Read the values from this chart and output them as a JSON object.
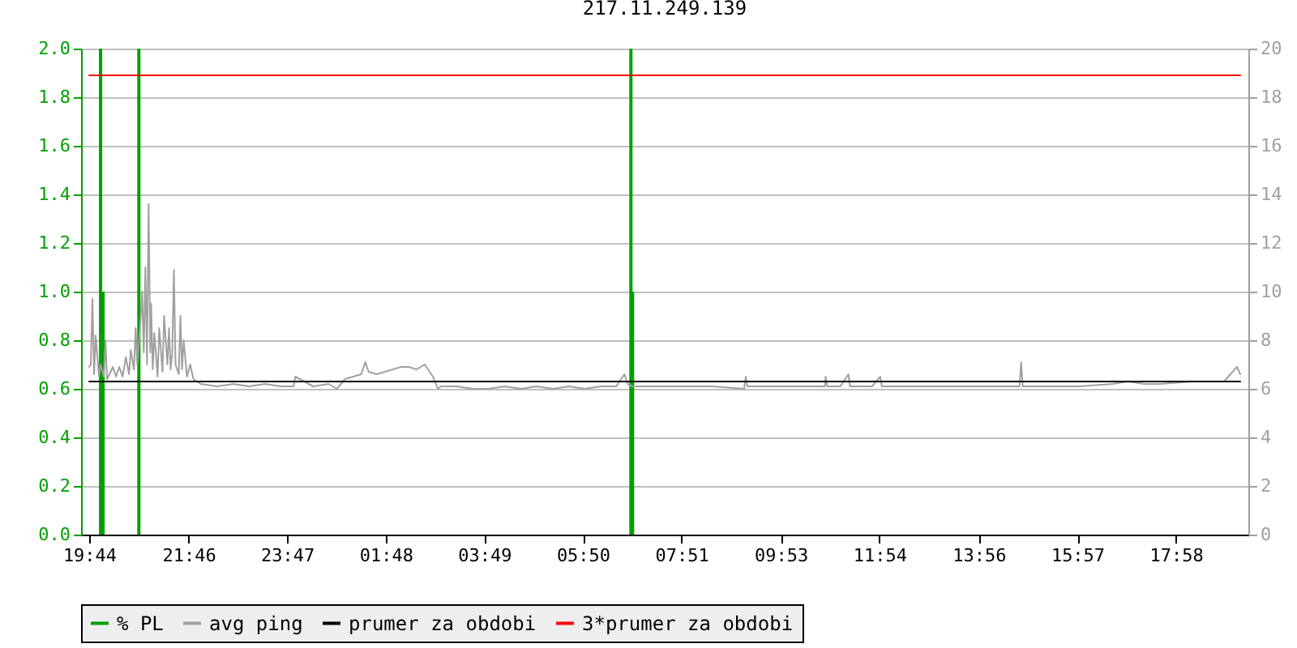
{
  "chart_data": {
    "type": "line",
    "title": "217.11.249.139",
    "grid": "y",
    "legend": "bottom",
    "xlim": [
      "--01-01T19:44",
      "--01-02T19:17"
    ],
    "xticks": [
      {
        "value": "--01-01T19:44",
        "label": "19:44"
      },
      {
        "value": "--01-01T21:46",
        "label": "21:46"
      },
      {
        "value": "--01-01T23:47",
        "label": "23:47"
      },
      {
        "value": "--01-02T01:48",
        "label": "01:48"
      },
      {
        "value": "--01-02T03:49",
        "label": "03:49"
      },
      {
        "value": "--01-02T05:50",
        "label": "05:50"
      },
      {
        "value": "--01-02T07:51",
        "label": "07:51"
      },
      {
        "value": "--01-02T09:53",
        "label": "09:53"
      },
      {
        "value": "--01-02T11:54",
        "label": "11:54"
      },
      {
        "value": "--01-02T13:56",
        "label": "13:56"
      },
      {
        "value": "--01-02T15:57",
        "label": "15:57"
      },
      {
        "value": "--01-02T17:58",
        "label": "17:58"
      }
    ],
    "ylim": [
      0,
      2
    ],
    "yticks": [
      {
        "value": 0,
        "label": "0.0"
      },
      0.2,
      0.4,
      0.6,
      0.8,
      {
        "value": 1,
        "label": "1.0"
      },
      1.2,
      1.4,
      1.6,
      1.8,
      {
        "value": 2,
        "label": "2.0"
      }
    ],
    "y2lim": [
      0,
      20
    ],
    "y2ticks": [
      0,
      2,
      4,
      6,
      8,
      10,
      12,
      14,
      16,
      18,
      20
    ],
    "series": [
      {
        "name": "% PL",
        "type": "bar",
        "axis": "y",
        "color": "#00a000",
        "x": [
          "--01-01T19:58",
          "--01-01T20:01",
          "--01-01T20:45",
          "--01-02T06:49",
          "--01-02T06:51"
        ],
        "values": [
          2.0,
          1.0,
          2.0,
          2.0,
          1.0
        ]
      },
      {
        "name": "avg ping",
        "axis": "y2",
        "color": "#a0a0a0",
        "x": [
          "--01-01T19:44",
          "--01-01T19:46",
          "--01-01T19:48",
          "--01-01T19:50",
          "--01-01T19:52",
          "--01-01T19:56",
          "--01-01T19:58",
          "--01-01T20:02",
          "--01-01T20:04",
          "--01-01T20:06",
          "--01-01T20:09",
          "--01-01T20:13",
          "--01-01T20:17",
          "--01-01T20:21",
          "--01-01T20:25",
          "--01-01T20:29",
          "--01-01T20:33",
          "--01-01T20:35",
          "--01-01T20:39",
          "--01-01T20:41",
          "--01-01T20:43",
          "--01-01T20:47",
          "--01-01T20:49",
          "--01-01T20:51",
          "--01-01T20:53",
          "--01-01T20:55",
          "--01-01T20:57",
          "--01-01T20:59",
          "--01-01T21:00",
          "--01-01T21:02",
          "--01-01T21:04",
          "--01-01T21:08",
          "--01-01T21:10",
          "--01-01T21:14",
          "--01-01T21:16",
          "--01-01T21:20",
          "--01-01T21:22",
          "--01-01T21:24",
          "--01-01T21:26",
          "--01-01T21:28",
          "--01-01T21:30",
          "--01-01T21:34",
          "--01-01T21:36",
          "--01-01T21:38",
          "--01-01T21:40",
          "--01-01T21:44",
          "--01-01T21:48",
          "--01-01T21:52",
          "--01-01T22:01",
          "--01-01T22:21",
          "--01-01T22:41",
          "--01-01T23:00",
          "--01-01T23:20",
          "--01-01T23:39",
          "--01-01T23:55",
          "--01-01T23:57",
          "--01-02T00:19",
          "--01-02T00:38",
          "--01-02T00:48",
          "--01-02T00:58",
          "--01-02T01:18",
          "--01-02T01:23",
          "--01-02T01:27",
          "--01-02T01:37",
          "--01-02T01:57",
          "--01-02T02:07",
          "--01-02T02:16",
          "--01-02T02:26",
          "--01-02T02:36",
          "--01-02T02:46",
          "--01-02T02:52",
          "--01-02T02:56",
          "--01-02T03:15",
          "--01-02T03:35",
          "--01-02T03:54",
          "--01-02T04:14",
          "--01-02T04:34",
          "--01-02T04:53",
          "--01-02T05:13",
          "--01-02T05:33",
          "--01-02T05:52",
          "--01-02T06:12",
          "--01-02T06:31",
          "--01-02T06:41",
          "--01-02T06:45",
          "--01-02T06:51",
          "--01-02T07:11",
          "--01-02T07:50",
          "--01-02T08:29",
          "--01-02T09:08",
          "--01-02T09:10",
          "--01-02T09:12",
          "--01-02T09:48",
          "--01-02T10:27",
          "--01-02T10:47",
          "--01-02T10:48",
          "--01-02T10:50",
          "--01-02T11:06",
          "--01-02T11:16",
          "--01-02T11:18",
          "--01-02T11:45",
          "--01-02T11:55",
          "--01-02T11:57",
          "--01-02T12:25",
          "--01-02T13:04",
          "--01-02T13:43",
          "--01-02T14:22",
          "--01-02T14:46",
          "--01-02T14:48",
          "--01-02T14:50",
          "--01-02T15:21",
          "--01-02T16:00",
          "--01-02T16:40",
          "--01-02T16:59",
          "--01-02T17:19",
          "--01-02T17:39",
          "--01-02T18:18",
          "--01-02T18:57",
          "--01-02T19:13",
          "--01-02T19:17"
        ],
        "values": [
          6.9,
          7.0,
          9.7,
          6.6,
          8.2,
          6.5,
          7.0,
          6.5,
          8.0,
          6.4,
          6.6,
          6.9,
          6.5,
          6.9,
          6.5,
          7.3,
          6.6,
          7.6,
          6.8,
          8.5,
          7.0,
          8.8,
          10.0,
          7.5,
          11.0,
          7.0,
          13.6,
          7.5,
          9.5,
          6.8,
          8.3,
          6.5,
          8.5,
          6.7,
          9.0,
          7.0,
          8.5,
          6.8,
          7.5,
          10.9,
          7.0,
          6.6,
          9.0,
          6.8,
          8.0,
          6.5,
          7.0,
          6.4,
          6.2,
          6.1,
          6.2,
          6.1,
          6.2,
          6.1,
          6.1,
          6.5,
          6.1,
          6.2,
          6.0,
          6.4,
          6.6,
          7.1,
          6.7,
          6.6,
          6.8,
          6.9,
          6.9,
          6.8,
          7.0,
          6.5,
          6.0,
          6.1,
          6.1,
          6.0,
          6.0,
          6.1,
          6.0,
          6.1,
          6.0,
          6.1,
          6.0,
          6.1,
          6.1,
          6.6,
          6.2,
          6.1,
          6.1,
          6.1,
          6.1,
          6.0,
          6.5,
          6.1,
          6.1,
          6.1,
          6.1,
          6.5,
          6.1,
          6.1,
          6.6,
          6.1,
          6.1,
          6.5,
          6.1,
          6.1,
          6.1,
          6.1,
          6.1,
          6.1,
          7.1,
          6.1,
          6.1,
          6.1,
          6.2,
          6.3,
          6.2,
          6.2,
          6.3,
          6.3,
          6.9,
          6.6
        ]
      },
      {
        "name": "prumer za obdobi",
        "axis": "y2",
        "color": "#000000",
        "x": [
          "--01-01T19:44",
          "--01-02T19:17"
        ],
        "values": [
          6.3,
          6.3
        ]
      },
      {
        "name": "3*prumer za obdobi",
        "axis": "y2",
        "color": "#ff0000",
        "x": [
          "--01-01T19:44",
          "--01-02T19:17"
        ],
        "values": [
          18.9,
          18.9
        ]
      }
    ]
  }
}
